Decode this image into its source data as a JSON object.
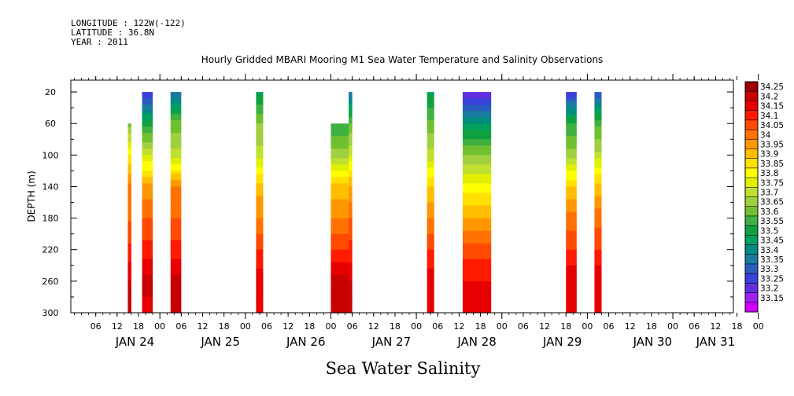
{
  "header": {
    "longitude": "LONGITUDE : 122W(-122)",
    "latitude": "LATITUDE : 36.8N",
    "year": "YEAR : 2011"
  },
  "chart_data": {
    "type": "heatmap",
    "title": "Hourly Gridded MBARI Mooring M1 Sea Water Temperature and Salinity Observations",
    "xlabel": "Sea Water Salinity",
    "ylabel": "DEPTH (m)",
    "xlim_hours": [
      0,
      186
    ],
    "x_start": "2011-01-23 23:00",
    "ylim": [
      300,
      5
    ],
    "y_ticks": [
      20,
      60,
      100,
      140,
      180,
      220,
      260,
      300
    ],
    "hour_tick_labels": [
      "06",
      "12",
      "18",
      "00",
      "06",
      "12",
      "18",
      "00",
      "06",
      "12",
      "18",
      "00",
      "06",
      "12",
      "18",
      "00",
      "06",
      "12",
      "18",
      "00",
      "06",
      "12",
      "18",
      "00",
      "06",
      "12",
      "18",
      "00",
      "06",
      "12",
      "18",
      "00"
    ],
    "day_labels": [
      "JAN 24",
      "JAN 25",
      "JAN 26",
      "JAN 27",
      "JAN 28",
      "JAN 29",
      "JAN 30",
      "JAN 31"
    ],
    "colorbar": {
      "levels": [
        "34.25",
        "34.2",
        "34.15",
        "34.1",
        "34.05",
        "34",
        "33.95",
        "33.9",
        "33.85",
        "33.8",
        "33.75",
        "33.7",
        "33.65",
        "33.6",
        "33.55",
        "33.5",
        "33.45",
        "33.4",
        "33.35",
        "33.3",
        "33.25",
        "33.2",
        "33.15"
      ],
      "colors": [
        "#a00000",
        "#c80000",
        "#e80000",
        "#ff1a00",
        "#ff4a00",
        "#ff7200",
        "#ff9800",
        "#ffbe00",
        "#ffe000",
        "#ffff00",
        "#e0f000",
        "#c0e030",
        "#a0d040",
        "#70c030",
        "#40b040",
        "#10a040",
        "#00a060",
        "#008c80",
        "#1a7aa0",
        "#2a5cc0",
        "#3a40d8",
        "#6030e0",
        "#a020f0",
        "#d000ff"
      ]
    },
    "segments": [
      {
        "start": "JAN 24 15:00",
        "end": "JAN 24 16:00",
        "top_depth": 60,
        "salinity_at_depth": {
          "60": 33.62,
          "100": 33.85,
          "140": 34.02,
          "180": 34.04,
          "220": 34.12,
          "260": 34.2,
          "300": 34.2
        }
      },
      {
        "start": "JAN 24 19:00",
        "end": "JAN 24 22:00",
        "top_depth": 20,
        "salinity_at_depth": {
          "20": 33.25,
          "60": 33.52,
          "100": 33.75,
          "140": 33.97,
          "180": 34.05,
          "220": 34.12,
          "260": 34.22,
          "300": 34.18
        }
      },
      {
        "start": "JAN 25 03:00",
        "end": "JAN 25 06:00",
        "top_depth": 20,
        "salinity_at_depth": {
          "20": 33.35,
          "60": 33.62,
          "100": 33.72,
          "140": 34.0,
          "180": 34.05,
          "220": 34.12,
          "260": 34.22,
          "300": 34.2
        }
      },
      {
        "start": "JAN 26 03:00",
        "end": "JAN 26 05:00",
        "top_depth": 20,
        "salinity_at_depth": {
          "20": 33.48,
          "60": 33.65,
          "100": 33.72,
          "140": 33.93,
          "180": 34.0,
          "220": 34.1,
          "260": 34.18,
          "300": 34.18
        }
      },
      {
        "start": "JAN 27 00:00",
        "end": "JAN 27 05:00",
        "top_depth": 60,
        "salinity_at_depth": {
          "60": 33.55,
          "100": 33.68,
          "140": 33.92,
          "180": 34.0,
          "220": 34.1,
          "260": 34.22,
          "300": 34.22
        }
      },
      {
        "start": "JAN 27 05:00",
        "end": "JAN 27 06:00",
        "top_depth": 20,
        "salinity_at_depth": {
          "20": 33.35,
          "60": 33.6,
          "100": 33.75,
          "140": 33.95,
          "180": 34.05,
          "220": 34.12,
          "260": 34.2,
          "300": 34.2
        }
      },
      {
        "start": "JAN 28 03:00",
        "end": "JAN 28 05:00",
        "top_depth": 20,
        "salinity_at_depth": {
          "20": 33.48,
          "60": 33.62,
          "100": 33.72,
          "140": 33.9,
          "180": 34.0,
          "220": 34.1,
          "260": 34.18,
          "300": 34.18
        }
      },
      {
        "start": "JAN 28 13:00",
        "end": "JAN 28 21:00",
        "top_depth": 20,
        "salinity_at_depth": {
          "20": 33.2,
          "60": 33.45,
          "100": 33.65,
          "140": 33.82,
          "180": 33.95,
          "220": 34.08,
          "260": 34.15,
          "300": 34.15
        }
      },
      {
        "start": "JAN 29 18:00",
        "end": "JAN 29 21:00",
        "top_depth": 20,
        "salinity_at_depth": {
          "20": 33.25,
          "60": 33.55,
          "100": 33.68,
          "140": 33.9,
          "180": 34.02,
          "220": 34.1,
          "260": 34.2,
          "300": 34.18
        }
      },
      {
        "start": "JAN 30 02:00",
        "end": "JAN 30 04:00",
        "top_depth": 20,
        "salinity_at_depth": {
          "20": 33.3,
          "60": 33.58,
          "100": 33.72,
          "140": 33.92,
          "180": 34.03,
          "220": 34.1,
          "260": 34.2,
          "300": 34.18
        }
      }
    ]
  }
}
